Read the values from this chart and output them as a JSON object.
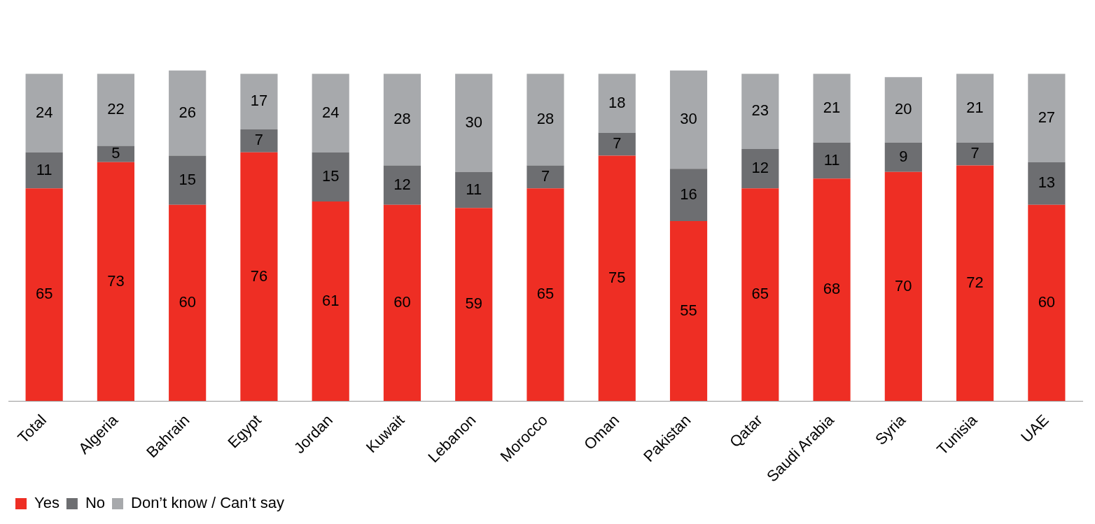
{
  "chart_data": {
    "type": "bar",
    "stacked": true,
    "data_labels": true,
    "grid": false,
    "legend": "bottom left",
    "categories": [
      "Total",
      "Algeria",
      "Bahrain",
      "Egypt",
      "Jordan",
      "Kuwait",
      "Lebanon",
      "Morocco",
      "Oman",
      "Pakistan",
      "Qatar",
      "Saudi Arabia",
      "Syria",
      "Tunisia",
      "UAE"
    ],
    "series": [
      {
        "name": "Yes",
        "color": "#ee2e24",
        "values": [
          65,
          73,
          60,
          76,
          61,
          60,
          59,
          65,
          75,
          55,
          65,
          68,
          70,
          72,
          60
        ]
      },
      {
        "name": "No",
        "color": "#6d6e71",
        "values": [
          11,
          5,
          15,
          7,
          15,
          12,
          11,
          7,
          7,
          16,
          12,
          11,
          9,
          7,
          13
        ]
      },
      {
        "name": "Don’t know / Can’t say",
        "color": "#a7a9ac",
        "values": [
          24,
          22,
          26,
          17,
          24,
          28,
          30,
          28,
          18,
          30,
          23,
          21,
          20,
          21,
          27
        ]
      }
    ]
  }
}
